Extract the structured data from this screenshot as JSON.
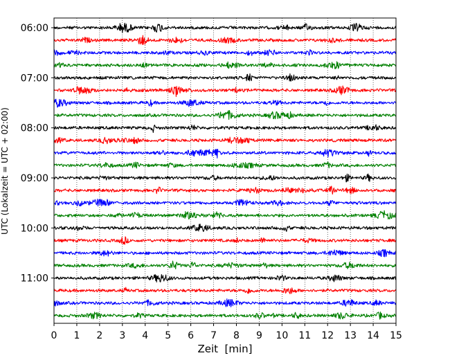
{
  "chart_data": {
    "type": "line",
    "title": "",
    "xlabel": "Zeit  [min]",
    "ylabel": "UTC (Lokalzeit = UTC + 02:00)",
    "xlim": [
      0,
      15
    ],
    "x_ticks": [
      0,
      1,
      2,
      3,
      4,
      5,
      6,
      7,
      8,
      9,
      10,
      11,
      12,
      13,
      14,
      15
    ],
    "y_tick_labels": [
      "06:00",
      "07:00",
      "08:00",
      "09:00",
      "10:00",
      "11:00"
    ],
    "y_tick_rows": [
      0,
      4,
      8,
      12,
      16,
      20
    ],
    "grid": "vertical dotted lines at each minute",
    "trace_interval_min": 15,
    "traces": [
      {
        "start": "06:00",
        "color": "#000000"
      },
      {
        "start": "06:15",
        "color": "#ff0000"
      },
      {
        "start": "06:30",
        "color": "#0000ff"
      },
      {
        "start": "06:45",
        "color": "#008000"
      },
      {
        "start": "07:00",
        "color": "#000000"
      },
      {
        "start": "07:15",
        "color": "#ff0000"
      },
      {
        "start": "07:30",
        "color": "#0000ff"
      },
      {
        "start": "07:45",
        "color": "#008000"
      },
      {
        "start": "08:00",
        "color": "#000000"
      },
      {
        "start": "08:15",
        "color": "#ff0000"
      },
      {
        "start": "08:30",
        "color": "#0000ff"
      },
      {
        "start": "08:45",
        "color": "#008000"
      },
      {
        "start": "09:00",
        "color": "#000000"
      },
      {
        "start": "09:15",
        "color": "#ff0000"
      },
      {
        "start": "09:30",
        "color": "#0000ff"
      },
      {
        "start": "09:45",
        "color": "#008000"
      },
      {
        "start": "10:00",
        "color": "#000000"
      },
      {
        "start": "10:15",
        "color": "#ff0000"
      },
      {
        "start": "10:30",
        "color": "#0000ff"
      },
      {
        "start": "10:45",
        "color": "#008000"
      },
      {
        "start": "11:00",
        "color": "#000000"
      },
      {
        "start": "11:15",
        "color": "#ff0000"
      },
      {
        "start": "11:30",
        "color": "#0000ff"
      },
      {
        "start": "11:45",
        "color": "#008000"
      }
    ]
  }
}
